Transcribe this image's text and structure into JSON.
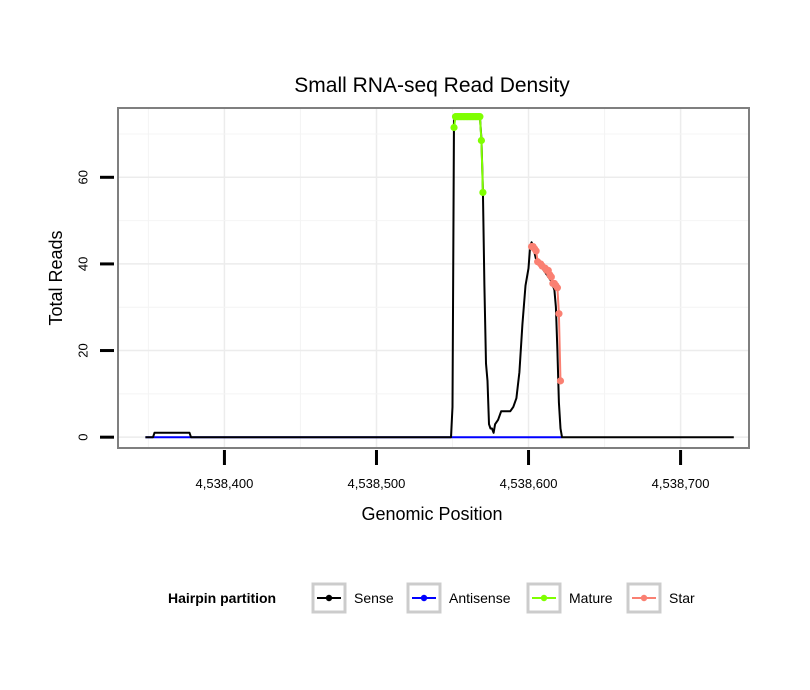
{
  "chart_data": {
    "type": "line",
    "title": "Small RNA-seq Read Density",
    "xlabel": "Genomic Position",
    "ylabel": "Total Reads",
    "xlim": [
      4538330,
      4538745
    ],
    "ylim": [
      -2.5,
      76
    ],
    "x_ticks": [
      {
        "value": 4538400,
        "label": "4,538,400"
      },
      {
        "value": 4538500,
        "label": "4,538,500"
      },
      {
        "value": 4538600,
        "label": "4,538,600"
      },
      {
        "value": 4538700,
        "label": "4,538,700"
      }
    ],
    "y_ticks": [
      {
        "value": 0,
        "label": "0"
      },
      {
        "value": 20,
        "label": "20"
      },
      {
        "value": 40,
        "label": "40"
      },
      {
        "value": 60,
        "label": "60"
      }
    ],
    "grid": true,
    "legend": {
      "title": "Hairpin partition",
      "position": "bottom",
      "items": [
        {
          "label": "Sense",
          "color": "#000000"
        },
        {
          "label": "Antisense",
          "color": "#0000ff"
        },
        {
          "label": "Mature",
          "color": "#7fff00"
        },
        {
          "label": "Star",
          "color": "#fa8072"
        }
      ]
    },
    "series": [
      {
        "name": "Sense",
        "color": "#000000",
        "markers": false,
        "x": [
          4538348,
          4538353,
          4538354,
          4538377,
          4538378,
          4538549,
          4538550,
          4538551,
          4538552,
          4538553,
          4538568,
          4538569,
          4538570,
          4538571,
          4538572,
          4538573,
          4538574,
          4538575,
          4538576,
          4538577,
          4538578,
          4538580,
          4538582,
          4538584,
          4538586,
          4538588,
          4538590,
          4538592,
          4538594,
          4538596,
          4538598,
          4538600,
          4538601,
          4538602,
          4538603,
          4538605,
          4538607,
          4538609,
          4538611,
          4538613,
          4538615,
          4538616,
          4538617,
          4538618,
          4538619,
          4538620,
          4538621,
          4538622,
          4538624,
          4538735
        ],
        "y": [
          0,
          0,
          1,
          1,
          0,
          0,
          7,
          73,
          74,
          74,
          74,
          69,
          57,
          35,
          17,
          13,
          3,
          2,
          2,
          1,
          3,
          4,
          6,
          6,
          6,
          6,
          7,
          9,
          15,
          26,
          35,
          39,
          44,
          45,
          44,
          41,
          40,
          39,
          38,
          37,
          36,
          35,
          34,
          30,
          20,
          8,
          2,
          0,
          0,
          0
        ]
      },
      {
        "name": "Antisense",
        "color": "#0000ff",
        "markers": false,
        "x": [
          4538348,
          4538622
        ],
        "y": [
          0,
          0
        ]
      },
      {
        "name": "Mature",
        "color": "#7fff00",
        "markers": true,
        "x": [
          4538551,
          4538552,
          4538553,
          4538554,
          4538555,
          4538556,
          4538557,
          4538558,
          4538559,
          4538560,
          4538561,
          4538562,
          4538563,
          4538564,
          4538565,
          4538566,
          4538567,
          4538568,
          4538569,
          4538570
        ],
        "y": [
          71.5,
          74,
          74,
          74,
          74,
          74,
          74,
          74,
          74,
          74,
          74,
          74,
          74,
          74,
          74,
          74,
          74,
          74,
          68.5,
          56.5
        ]
      },
      {
        "name": "Star",
        "color": "#fa8072",
        "markers": true,
        "x": [
          4538602,
          4538603,
          4538604,
          4538605,
          4538606,
          4538608,
          4538609,
          4538611,
          4538612,
          4538613,
          4538614,
          4538615,
          4538616,
          4538617,
          4538618,
          4538619,
          4538620,
          4538621
        ],
        "y": [
          44,
          44,
          43.5,
          43,
          40.5,
          40,
          39.5,
          39,
          38.5,
          38.5,
          37.5,
          37,
          35.5,
          35.5,
          35,
          34.5,
          28.5,
          13
        ]
      }
    ]
  }
}
